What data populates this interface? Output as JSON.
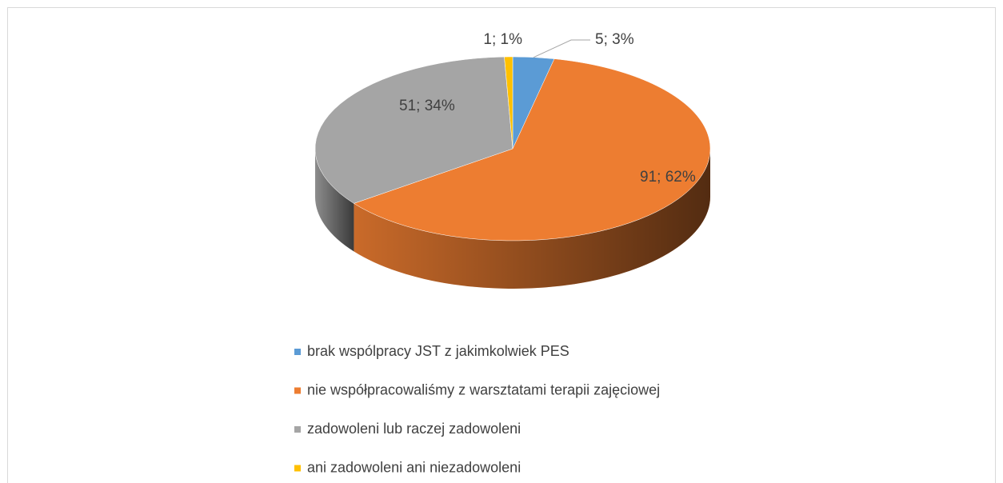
{
  "chart_data": {
    "type": "pie3d",
    "categories": [
      "brak wspólpracy JST z jakimkolwiek PES",
      "nie współpracowaliśmy z warsztatami terapii zajęciowej",
      "zadowoleni lub raczej zadowoleni",
      "ani zadowoleni ani niezadowoleni"
    ],
    "values": [
      5,
      91,
      51,
      1
    ],
    "value_labels": [
      "5; 3%",
      "91; 62%",
      "51; 34%",
      "1; 1%"
    ],
    "colors": [
      "#5b9bd5",
      "#ed7d31",
      "#a5a5a5",
      "#ffc000"
    ],
    "legend": "bottom"
  }
}
